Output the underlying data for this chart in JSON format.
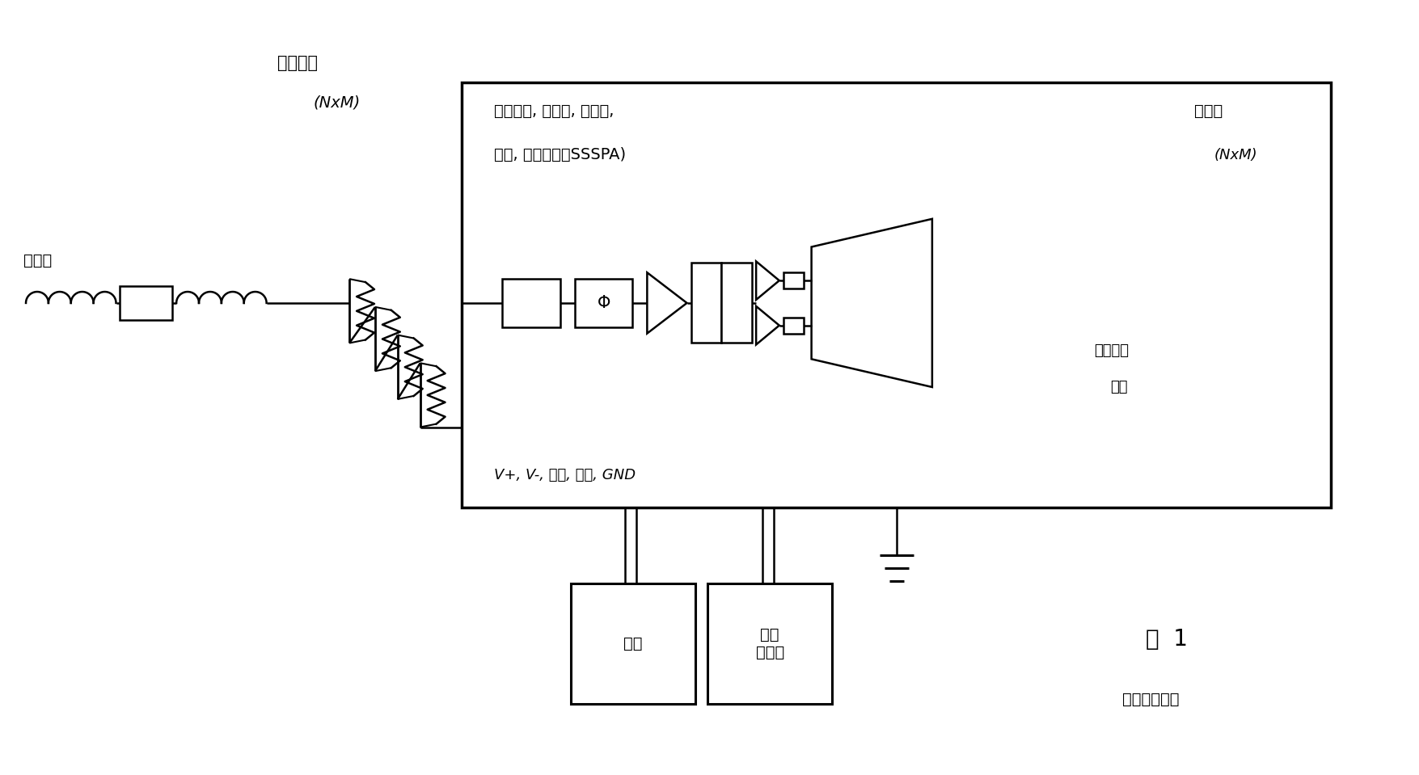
{
  "bg_color": "#ffffff",
  "line_color": "#000000",
  "fig_width": 17.55,
  "fig_height": 9.59,
  "title_fig": "图  1",
  "subtitle": "（现有技术）",
  "label_input": "输入端",
  "label_dist_net": "分配网络",
  "label_dist_net2": "(NxM)",
  "label_box_content1": "（衰减器, 移相器, 驱动器,",
  "label_box_content2": "开关, 混合电路及SSSPA)",
  "label_radiator": "辐射器",
  "label_radiator2": "(NxM)",
  "label_transfer": "向辐射器",
  "label_transfer2": "转移",
  "label_vplus": "V+, V-, 时钟, 数据, GND",
  "label_power": "电源",
  "label_controller": "波束\n控制器"
}
